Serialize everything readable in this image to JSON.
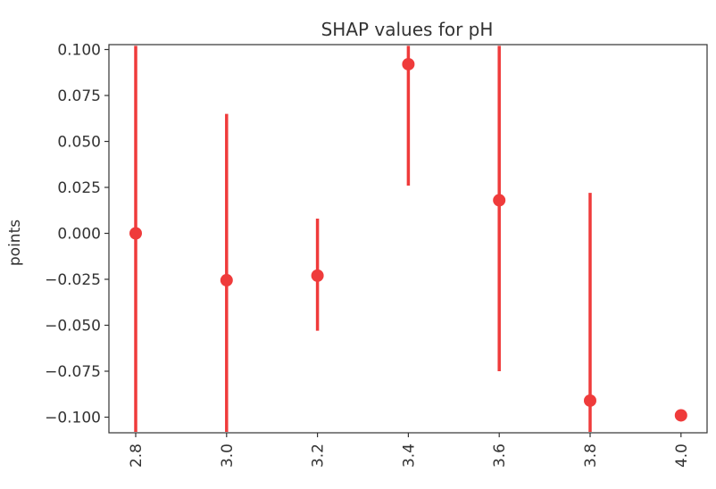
{
  "chart_data": {
    "type": "scatter",
    "title": "SHAP values for pH",
    "xlabel": "",
    "ylabel": "points",
    "x_ticks": [
      "2.8",
      "3.0",
      "3.2",
      "3.4",
      "3.6",
      "3.8",
      "4.0"
    ],
    "y_ticks": [
      "0.100",
      "0.075",
      "0.050",
      "0.025",
      "0.000",
      "−0.025",
      "−0.050",
      "−0.075",
      "−0.100"
    ],
    "xlim": [
      2.8,
      4.0
    ],
    "ylim": [
      -0.108,
      0.102
    ],
    "grid": false,
    "color": "#ef3b3b",
    "points": [
      {
        "x": 2.8,
        "y": 0.0,
        "err_low": -0.108,
        "err_high": 0.102
      },
      {
        "x": 3.0,
        "y": -0.0255,
        "err_low": -0.108,
        "err_high": 0.065
      },
      {
        "x": 3.2,
        "y": -0.023,
        "err_low": -0.053,
        "err_high": 0.008
      },
      {
        "x": 3.4,
        "y": 0.092,
        "err_low": 0.026,
        "err_high": 0.102
      },
      {
        "x": 3.6,
        "y": 0.018,
        "err_low": -0.075,
        "err_high": 0.102
      },
      {
        "x": 3.8,
        "y": -0.091,
        "err_low": -0.108,
        "err_high": 0.022
      },
      {
        "x": 4.0,
        "y": -0.099,
        "err_low": -0.099,
        "err_high": -0.099
      }
    ]
  }
}
